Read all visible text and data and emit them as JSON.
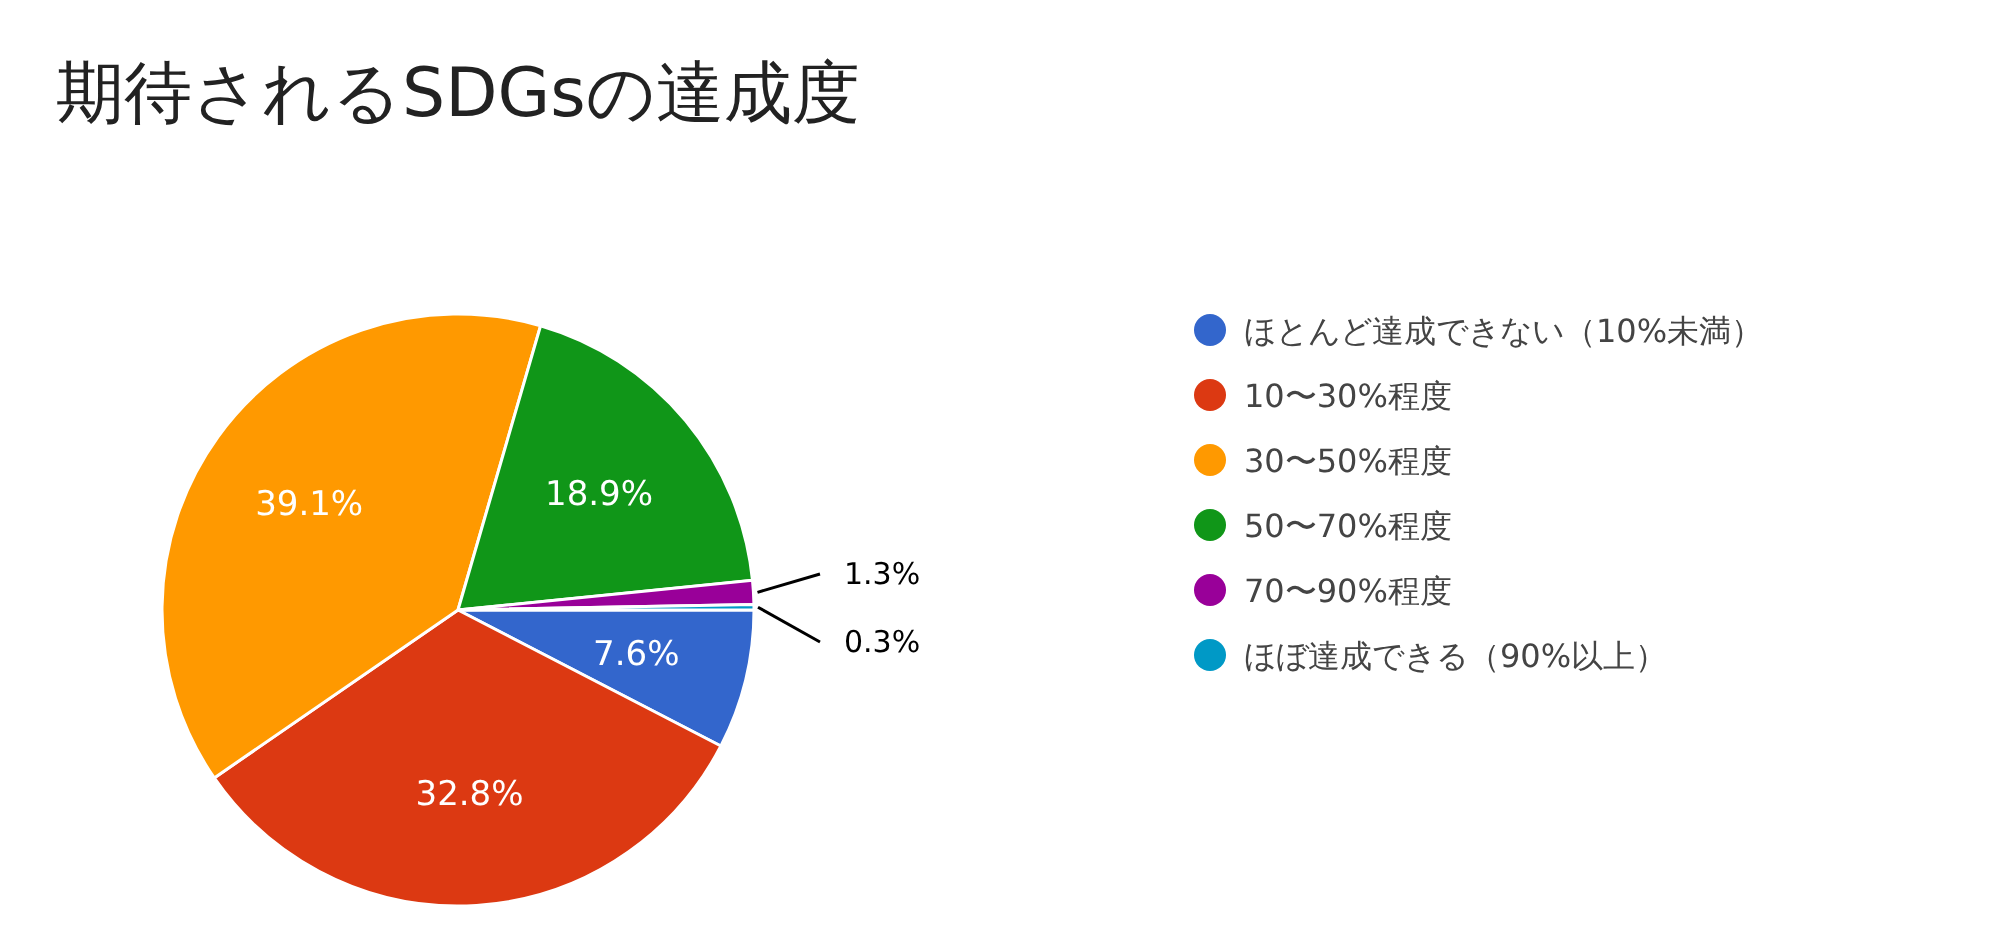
{
  "chart_data": {
    "type": "pie",
    "title": "期待されるSDGsの達成度",
    "categories": [
      "ほとんど達成できない（10%未満）",
      "10〜30%程度",
      "30〜50%程度",
      "50〜70%程度",
      "70〜90%程度",
      "ほぼ達成できる（90%以上）"
    ],
    "values": [
      7.6,
      32.8,
      39.1,
      18.9,
      1.3,
      0.3
    ],
    "colors": [
      "#3366cc",
      "#dc3912",
      "#ff9900",
      "#109618",
      "#990099",
      "#0099c6"
    ],
    "value_labels": [
      "7.6%",
      "32.8%",
      "39.1%",
      "18.9%",
      "1.3%",
      "0.3%"
    ],
    "legend": "right"
  }
}
